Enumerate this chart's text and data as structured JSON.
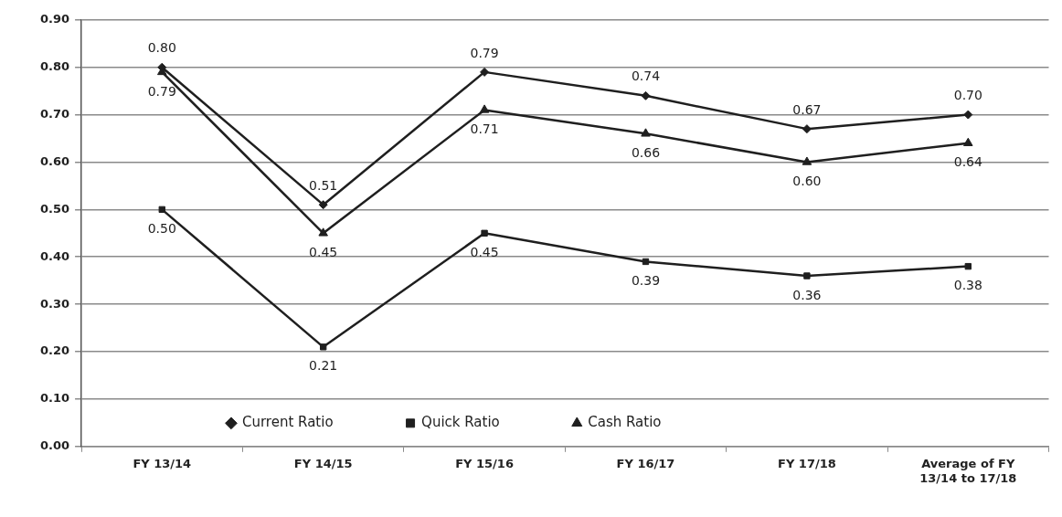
{
  "chart_data": {
    "type": "line",
    "categories": [
      "FY 13/14",
      "FY 14/15",
      "FY 15/16",
      "FY 16/17",
      "FY 17/18",
      "Average of FY 13/14 to 17/18"
    ],
    "series": [
      {
        "name": "Current Ratio",
        "color": "#1f1f1f",
        "marker": "diamond",
        "values": [
          0.8,
          0.51,
          0.79,
          0.74,
          0.67,
          0.7
        ],
        "value_labels": [
          "0.80",
          "0.51",
          "0.79",
          "0.74",
          "0.67",
          "0.70"
        ]
      },
      {
        "name": "Quick Ratio",
        "color": "#1f1f1f",
        "marker": "square",
        "values": [
          0.5,
          0.21,
          0.45,
          0.39,
          0.36,
          0.38
        ],
        "value_labels": [
          "0.50",
          "0.21",
          "0.45",
          "0.39",
          "0.36",
          "0.38"
        ]
      },
      {
        "name": "Cash Ratio",
        "color": "#1f1f1f",
        "marker": "triangle",
        "values": [
          0.79,
          0.45,
          0.71,
          0.66,
          0.6,
          0.64
        ],
        "value_labels": [
          "0.79",
          "0.45",
          "0.71",
          "0.66",
          "0.60",
          "0.64"
        ]
      }
    ],
    "ylim": [
      0,
      0.9
    ],
    "yticks": [
      {
        "value": 0,
        "label": "0.00"
      },
      {
        "value": 0.1,
        "label": "0.10"
      },
      {
        "value": 0.2,
        "label": "0.20"
      },
      {
        "value": 0.3,
        "label": "0.30"
      },
      {
        "value": 0.4,
        "label": "0.40"
      },
      {
        "value": 0.5,
        "label": "0.50"
      },
      {
        "value": 0.6,
        "label": "0.60"
      },
      {
        "value": 0.7,
        "label": "0.70"
      },
      {
        "value": 0.8,
        "label": "0.80"
      },
      {
        "value": 0.9,
        "label": "0.90"
      }
    ],
    "grid": "y",
    "legend": "bottom",
    "line_style": "solid"
  }
}
